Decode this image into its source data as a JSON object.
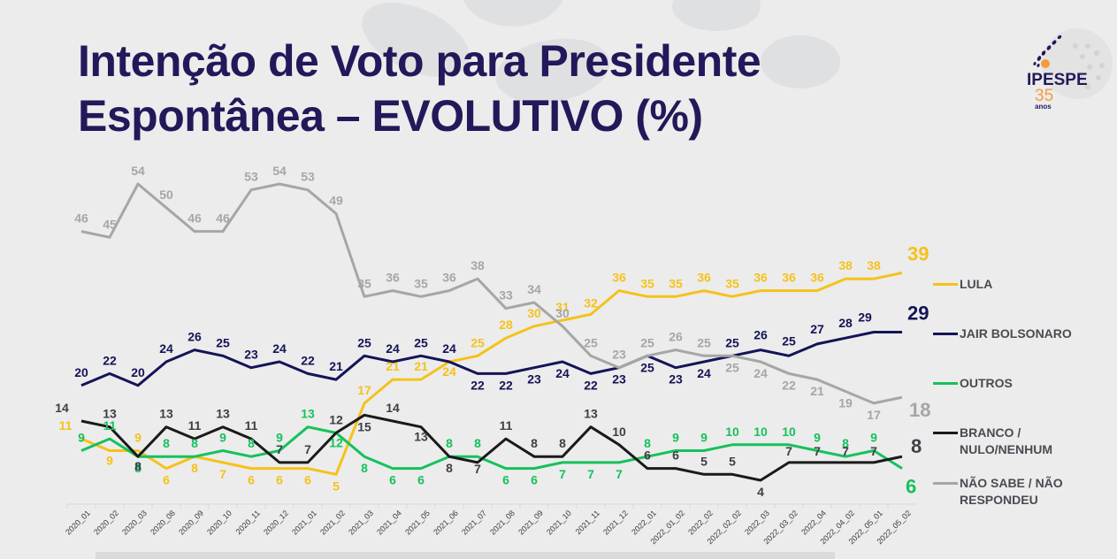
{
  "header": {
    "title_line1": "Intenção de Voto para Presidente",
    "title_line2": "Espontânea – EVOLUTIVO (%)"
  },
  "logo": {
    "name": "IPESPE",
    "years": "35",
    "anos": "anos",
    "colors": {
      "navy": "#24185a",
      "orange": "#f39c3c"
    }
  },
  "chart_data": {
    "type": "line",
    "title": "Intenção de Voto para Presidente Espontânea – EVOLUTIVO (%)",
    "xlabel": "",
    "ylabel": "",
    "ylim": [
      0,
      60
    ],
    "grid": false,
    "legend_position": "right",
    "categories": [
      "2020_01",
      "2020_02",
      "2020_03",
      "2020_08",
      "2020_09",
      "2020_10",
      "2020_11",
      "2020_12",
      "2021_01",
      "2021_02",
      "2021_03",
      "2021_04",
      "2021_05",
      "2021_06",
      "2021_07",
      "2021_08",
      "2021_09",
      "2021_10",
      "2021_11",
      "2021_12",
      "2022_01",
      "2022_01_02",
      "2022_02",
      "2022_02_02",
      "2022_03",
      "2022_03_02",
      "2022_04",
      "2022_04_02",
      "2022_05_01",
      "2022_05_02"
    ],
    "series": [
      {
        "name": "LULA",
        "color": "#f5c21b",
        "values": [
          11,
          9,
          9,
          6,
          8,
          7,
          6,
          6,
          6,
          5,
          17,
          21,
          21,
          24,
          25,
          28,
          30,
          31,
          32,
          36,
          35,
          35,
          36,
          35,
          36,
          36,
          36,
          38,
          38,
          39
        ]
      },
      {
        "name": "JAIR BOLSONARO",
        "color": "#141458",
        "values": [
          20,
          22,
          20,
          24,
          26,
          25,
          23,
          24,
          22,
          21,
          25,
          24,
          25,
          24,
          22,
          22,
          23,
          24,
          22,
          23,
          25,
          23,
          24,
          25,
          26,
          25,
          27,
          28,
          29,
          29
        ]
      },
      {
        "name": "OUTROS",
        "color": "#16c15c",
        "values": [
          9,
          11,
          8,
          8,
          8,
          9,
          8,
          9,
          13,
          12,
          8,
          6,
          6,
          8,
          8,
          6,
          6,
          7,
          7,
          7,
          8,
          9,
          9,
          10,
          10,
          10,
          9,
          8,
          9,
          6
        ]
      },
      {
        "name": "BRANCO / NULO/NENHUM",
        "color": "#1a1a1a",
        "label_color": "#3e3e46",
        "values": [
          14,
          13,
          8,
          13,
          11,
          13,
          11,
          7,
          7,
          12,
          15,
          14,
          13,
          8,
          7,
          11,
          8,
          8,
          13,
          10,
          6,
          6,
          5,
          5,
          4,
          7,
          7,
          7,
          7,
          8
        ]
      },
      {
        "name": "NÃO SABE / NÃO RESPONDEU",
        "color": "#a6a6a6",
        "values": [
          46,
          45,
          54,
          50,
          46,
          46,
          53,
          54,
          53,
          49,
          35,
          36,
          35,
          36,
          38,
          33,
          34,
          30,
          25,
          23,
          25,
          26,
          25,
          25,
          24,
          22,
          21,
          19,
          17,
          18
        ]
      }
    ]
  },
  "legend": {
    "items": [
      {
        "label": "LULA",
        "color": "#f5c21b"
      },
      {
        "label": "JAIR BOLSONARO",
        "color": "#141458"
      },
      {
        "label": "OUTROS",
        "color": "#16c15c"
      },
      {
        "label": "BRANCO / NULO/NENHUM",
        "color": "#1a1a1a"
      },
      {
        "label": "NÃO SABE / NÃO RESPONDEU",
        "color": "#a6a6a6"
      }
    ]
  }
}
